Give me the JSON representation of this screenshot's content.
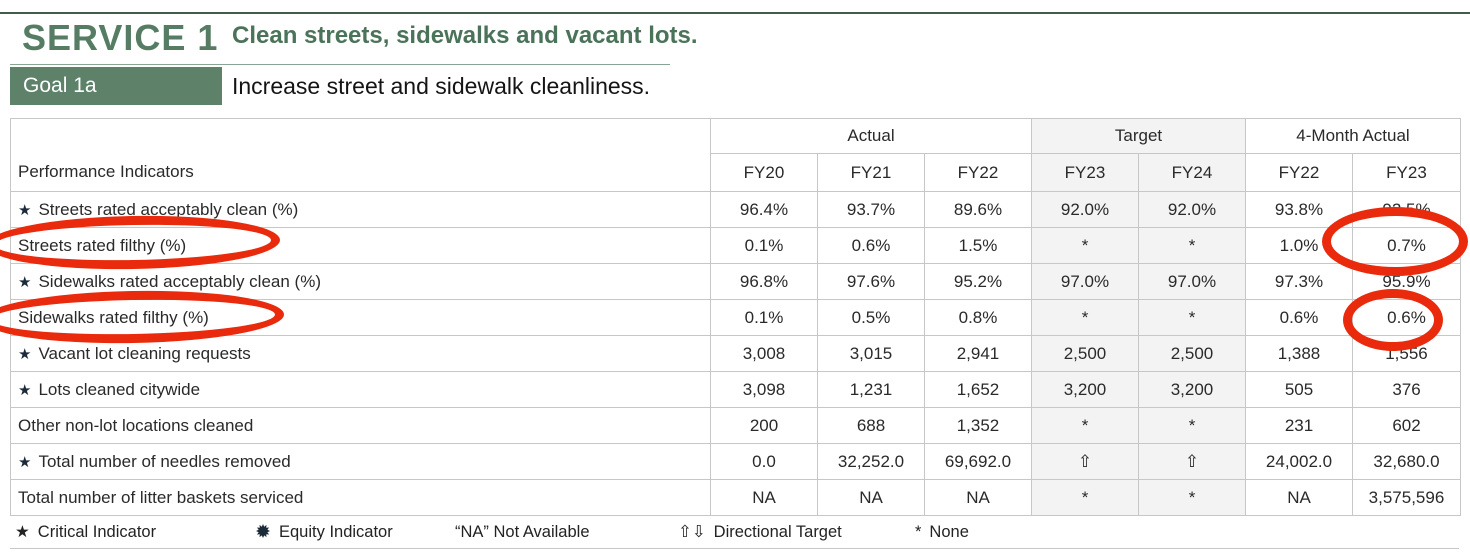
{
  "header": {
    "service_label": "SERVICE 1",
    "service_title": "Clean streets, sidewalks and vacant lots.",
    "goal_label": "Goal 1a",
    "goal_title": "Increase street and sidewalk cleanliness."
  },
  "table": {
    "indicator_header": "Performance Indicators",
    "critical_marker": "★",
    "groups": [
      {
        "label": "Actual",
        "span": 3,
        "shaded": false
      },
      {
        "label": "Target",
        "span": 2,
        "shaded": true
      },
      {
        "label": "4-Month Actual",
        "span": 2,
        "shaded": false
      }
    ],
    "columns": [
      "FY20",
      "FY21",
      "FY22",
      "FY23",
      "FY24",
      "FY22",
      "FY23"
    ],
    "shaded_column_indexes": [
      3,
      4
    ],
    "rows": [
      {
        "label": "Streets rated acceptably clean (%)",
        "critical": true,
        "values": [
          "96.4%",
          "93.7%",
          "89.6%",
          "92.0%",
          "92.0%",
          "93.8%",
          "92.5%"
        ]
      },
      {
        "label": "Streets rated filthy (%)",
        "critical": false,
        "values": [
          "0.1%",
          "0.6%",
          "1.5%",
          "*",
          "*",
          "1.0%",
          "0.7%"
        ]
      },
      {
        "label": "Sidewalks rated acceptably clean (%)",
        "critical": true,
        "values": [
          "96.8%",
          "97.6%",
          "95.2%",
          "97.0%",
          "97.0%",
          "97.3%",
          "95.9%"
        ]
      },
      {
        "label": "Sidewalks rated filthy (%)",
        "critical": false,
        "values": [
          "0.1%",
          "0.5%",
          "0.8%",
          "*",
          "*",
          "0.6%",
          "0.6%"
        ]
      },
      {
        "label": "Vacant lot cleaning requests",
        "critical": true,
        "values": [
          "3,008",
          "3,015",
          "2,941",
          "2,500",
          "2,500",
          "1,388",
          "1,556"
        ]
      },
      {
        "label": "Lots cleaned citywide",
        "critical": true,
        "values": [
          "3,098",
          "1,231",
          "1,652",
          "3,200",
          "3,200",
          "505",
          "376"
        ]
      },
      {
        "label": "Other non-lot locations cleaned",
        "critical": false,
        "values": [
          "200",
          "688",
          "1,352",
          "*",
          "*",
          "231",
          "602"
        ]
      },
      {
        "label": "Total number of needles removed",
        "critical": true,
        "values": [
          "0.0",
          "32,252.0",
          "69,692.0",
          "⇧",
          "⇧",
          "24,002.0",
          "32,680.0"
        ]
      },
      {
        "label": "Total number of litter baskets serviced",
        "critical": false,
        "values": [
          "NA",
          "NA",
          "NA",
          "*",
          "*",
          "NA",
          "3,575,596"
        ]
      }
    ]
  },
  "legend": {
    "items": [
      {
        "symbol": "★",
        "icon": "critical-star-icon",
        "text": "Critical Indicator"
      },
      {
        "symbol": "✹",
        "icon": "equity-sunburst-icon",
        "text": "Equity Indicator"
      },
      {
        "symbol": "",
        "icon": "",
        "text": "“NA” Not Available"
      },
      {
        "symbol": "⇧⇩",
        "icon": "directional-arrows-icon",
        "text": "Directional Target"
      },
      {
        "symbol": "*",
        "icon": "asterisk-icon",
        "text": "None"
      }
    ]
  },
  "annotations": {
    "highlight_color": "#ea2a0c",
    "circled_items": [
      "Streets rated filthy (%) label",
      "Sidewalks rated filthy (%) label",
      "FY23 4-Month Actual 0.7%",
      "FY23 4-Month Actual 0.6%"
    ]
  },
  "colors": {
    "service_green": "#567c63",
    "title_green": "#4a7359",
    "goal_box_green": "#5d8169",
    "table_border": "#c7c7c7",
    "target_column_shade": "#f3f3f4"
  }
}
